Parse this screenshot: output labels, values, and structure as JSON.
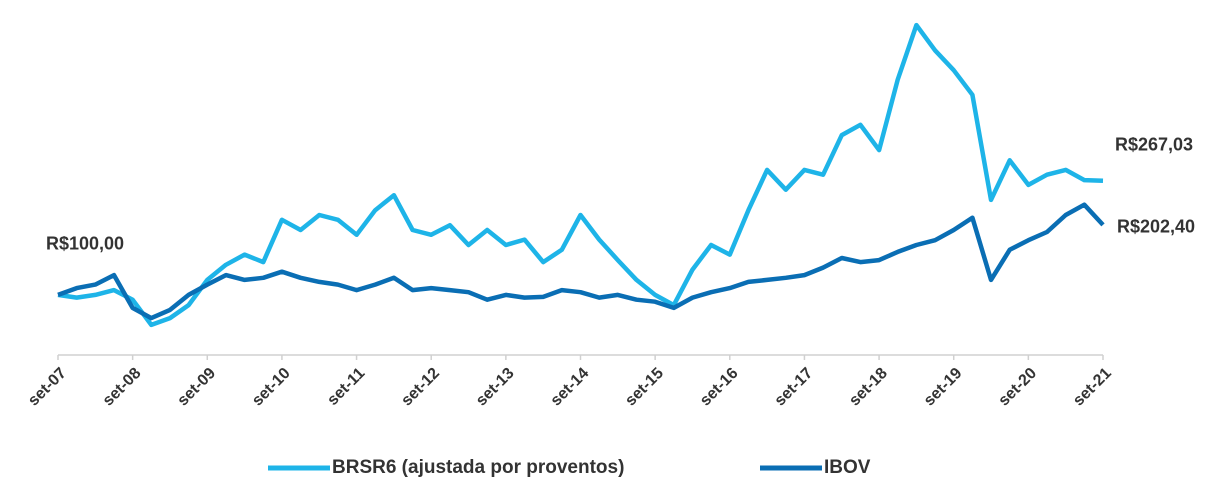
{
  "chart_data": {
    "type": "line",
    "categories": [
      "set-07",
      null,
      null,
      null,
      "set-08",
      null,
      null,
      null,
      "set-09",
      null,
      null,
      null,
      "set-10",
      null,
      null,
      null,
      "set-11",
      null,
      null,
      null,
      "set-12",
      null,
      null,
      null,
      "set-13",
      null,
      null,
      null,
      "set-14",
      null,
      null,
      null,
      "set-15",
      null,
      null,
      null,
      "set-16",
      null,
      null,
      null,
      "set-17",
      null,
      null,
      null,
      "set-18",
      null,
      null,
      null,
      "set-19",
      null,
      null,
      null,
      "set-20",
      null,
      null,
      null,
      "set-21"
    ],
    "series": [
      {
        "name": "BRSR6 (ajustada por proventos)",
        "color": "#1eb4e8",
        "values": [
          100,
          96,
          100,
          107,
          93,
          56,
          66,
          85,
          122,
          144,
          159,
          148,
          210,
          195,
          217,
          210,
          188,
          224,
          246,
          195,
          188,
          202,
          173,
          195,
          173,
          181,
          148,
          166,
          217,
          181,
          151,
          122,
          100,
          85,
          137,
          173,
          159,
          224,
          283,
          254,
          283,
          276,
          334,
          349,
          312,
          415,
          495,
          458,
          429,
          393,
          239,
          297,
          261,
          276,
          283,
          268,
          267.03
        ]
      },
      {
        "name": "IBOV",
        "color": "#0a6eb4",
        "values": [
          100,
          110,
          115,
          129,
          81,
          66,
          78,
          100,
          115,
          129,
          122,
          125,
          134,
          125,
          119,
          115,
          107,
          115,
          125,
          107,
          110,
          107,
          104,
          93,
          100,
          96,
          97,
          107,
          104,
          96,
          100,
          93,
          90,
          81,
          96,
          104,
          110,
          119,
          122,
          125,
          129,
          140,
          154,
          148,
          151,
          163,
          173,
          180,
          195,
          213,
          122,
          166,
          180,
          192,
          217,
          232,
          202.4
        ]
      }
    ],
    "annotations": [
      "R$100,00",
      "R$267,03",
      "R$202,40"
    ],
    "ylim": [
      12,
      520
    ],
    "legend": "bottom"
  }
}
